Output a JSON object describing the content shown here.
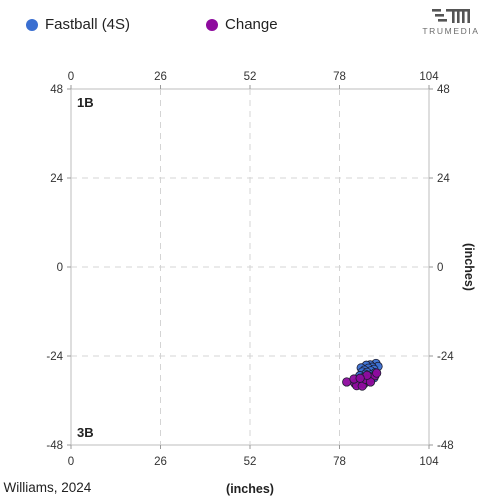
{
  "legend": [
    {
      "label": "Fastball (4S)",
      "color": "#3a6fd1"
    },
    {
      "label": "Change",
      "color": "#8e0b9e"
    }
  ],
  "brand": {
    "name": "TRUMEDIA",
    "logo_icon": "trumedia-logo-icon"
  },
  "caption": ". Williams, 2024",
  "chart_data": {
    "type": "scatter",
    "title": "",
    "xlabel": "(inches)",
    "ylabel": "(inches)",
    "xlim": [
      0,
      104
    ],
    "ylim": [
      -48,
      48
    ],
    "x_ticks": [
      0,
      26,
      52,
      78,
      104
    ],
    "y_ticks": [
      48,
      24,
      0,
      -24,
      -48
    ],
    "grid": true,
    "annotations": [
      {
        "text": "1B",
        "position": "top-left"
      },
      {
        "text": "3B",
        "position": "bottom-left"
      }
    ],
    "series": [
      {
        "name": "Fastball (4S)",
        "color": "#3a6fd1",
        "points": [
          [
            88.6,
            -26.0
          ],
          [
            86.9,
            -26.4
          ],
          [
            85.8,
            -26.5
          ],
          [
            89.2,
            -26.8
          ],
          [
            87.5,
            -27.0
          ],
          [
            84.3,
            -27.2
          ],
          [
            86.4,
            -27.3
          ],
          [
            88.0,
            -27.6
          ],
          [
            85.2,
            -27.8
          ],
          [
            87.1,
            -28.0
          ],
          [
            84.6,
            -28.3
          ],
          [
            86.0,
            -28.4
          ],
          [
            88.4,
            -28.5
          ],
          [
            85.5,
            -28.9
          ],
          [
            87.0,
            -29.1
          ],
          [
            83.9,
            -29.3
          ],
          [
            86.6,
            -29.5
          ],
          [
            85.0,
            -29.8
          ],
          [
            88.0,
            -29.9
          ],
          [
            86.2,
            -30.2
          ]
        ]
      },
      {
        "name": "Change",
        "color": "#8e0b9e",
        "points": [
          [
            80.1,
            -31.0
          ],
          [
            82.5,
            -31.4
          ],
          [
            83.4,
            -30.8
          ],
          [
            84.2,
            -31.2
          ],
          [
            85.1,
            -31.5
          ],
          [
            86.5,
            -30.6
          ],
          [
            87.4,
            -29.8
          ],
          [
            88.3,
            -29.3
          ],
          [
            83.0,
            -32.0
          ],
          [
            84.6,
            -32.1
          ],
          [
            85.6,
            -30.3
          ],
          [
            87.0,
            -31.0
          ],
          [
            82.2,
            -30.2
          ],
          [
            86.0,
            -29.2
          ],
          [
            88.8,
            -28.6
          ],
          [
            84.0,
            -30.0
          ]
        ]
      }
    ]
  }
}
